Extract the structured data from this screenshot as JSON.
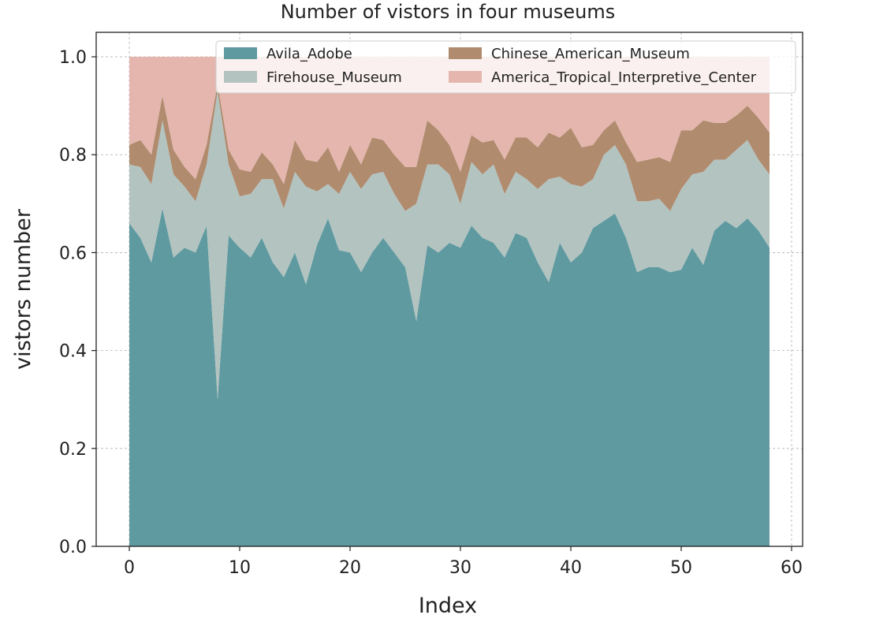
{
  "chart_data": {
    "type": "area",
    "stacked": true,
    "title": "Number of vistors in four museums",
    "xlabel": "Index",
    "ylabel": "vistors number",
    "xlim": [
      -3,
      61
    ],
    "ylim": [
      0,
      1.05
    ],
    "xticks": [
      0,
      10,
      20,
      30,
      40,
      50,
      60
    ],
    "yticks": [
      0.0,
      0.2,
      0.4,
      0.6,
      0.8,
      1.0
    ],
    "xtick_labels": [
      "0",
      "10",
      "20",
      "30",
      "40",
      "50",
      "60"
    ],
    "ytick_labels": [
      "0.0",
      "0.2",
      "0.4",
      "0.6",
      "0.8",
      "1.0"
    ],
    "grid": true,
    "legend_position": "top",
    "x": [
      0,
      1,
      2,
      3,
      4,
      5,
      6,
      7,
      8,
      9,
      10,
      11,
      12,
      13,
      14,
      15,
      16,
      17,
      18,
      19,
      20,
      21,
      22,
      23,
      24,
      25,
      26,
      27,
      28,
      29,
      30,
      31,
      32,
      33,
      34,
      35,
      36,
      37,
      38,
      39,
      40,
      41,
      42,
      43,
      44,
      45,
      46,
      47,
      48,
      49,
      50,
      51,
      52,
      53,
      54,
      55,
      56,
      57,
      58
    ],
    "series": [
      {
        "name": "Avila_Adobe",
        "color": "#5f9aa0",
        "values": [
          0.66,
          0.63,
          0.58,
          0.69,
          0.59,
          0.61,
          0.6,
          0.655,
          0.3,
          0.635,
          0.61,
          0.59,
          0.63,
          0.58,
          0.55,
          0.6,
          0.535,
          0.615,
          0.67,
          0.605,
          0.6,
          0.56,
          0.6,
          0.63,
          0.6,
          0.57,
          0.46,
          0.615,
          0.6,
          0.62,
          0.61,
          0.655,
          0.63,
          0.62,
          0.59,
          0.64,
          0.63,
          0.58,
          0.54,
          0.62,
          0.58,
          0.6,
          0.65,
          0.665,
          0.68,
          0.63,
          0.56,
          0.57,
          0.57,
          0.56,
          0.565,
          0.61,
          0.575,
          0.645,
          0.665,
          0.65,
          0.67,
          0.645,
          0.61
        ]
      },
      {
        "name": "Firehouse_Museum",
        "color": "#b3c3c0",
        "values": [
          0.12,
          0.145,
          0.16,
          0.18,
          0.17,
          0.125,
          0.105,
          0.125,
          0.63,
          0.145,
          0.105,
          0.13,
          0.12,
          0.17,
          0.14,
          0.165,
          0.2,
          0.11,
          0.07,
          0.115,
          0.165,
          0.17,
          0.16,
          0.135,
          0.12,
          0.115,
          0.24,
          0.165,
          0.18,
          0.14,
          0.09,
          0.13,
          0.13,
          0.16,
          0.13,
          0.125,
          0.12,
          0.15,
          0.21,
          0.135,
          0.16,
          0.135,
          0.1,
          0.135,
          0.14,
          0.15,
          0.145,
          0.135,
          0.14,
          0.125,
          0.165,
          0.15,
          0.19,
          0.145,
          0.125,
          0.16,
          0.16,
          0.145,
          0.15
        ]
      },
      {
        "name": "Chinese_American_Museum",
        "color": "#b08b6e",
        "values": [
          0.04,
          0.055,
          0.06,
          0.05,
          0.05,
          0.04,
          0.045,
          0.04,
          0.015,
          0.03,
          0.055,
          0.045,
          0.055,
          0.03,
          0.05,
          0.065,
          0.055,
          0.06,
          0.075,
          0.045,
          0.055,
          0.05,
          0.075,
          0.065,
          0.08,
          0.09,
          0.075,
          0.09,
          0.07,
          0.06,
          0.065,
          0.055,
          0.065,
          0.05,
          0.07,
          0.07,
          0.085,
          0.085,
          0.095,
          0.08,
          0.115,
          0.08,
          0.07,
          0.05,
          0.05,
          0.045,
          0.08,
          0.085,
          0.085,
          0.1,
          0.12,
          0.09,
          0.105,
          0.075,
          0.075,
          0.07,
          0.07,
          0.085,
          0.085
        ]
      },
      {
        "name": "America_Tropical_Interpretive_Center",
        "color": "#e4b6ae",
        "values": [
          0.18,
          0.17,
          0.2,
          0.08,
          0.19,
          0.225,
          0.25,
          0.18,
          0.055,
          0.19,
          0.23,
          0.235,
          0.195,
          0.22,
          0.26,
          0.17,
          0.21,
          0.215,
          0.185,
          0.235,
          0.18,
          0.22,
          0.165,
          0.17,
          0.2,
          0.225,
          0.225,
          0.13,
          0.15,
          0.18,
          0.235,
          0.16,
          0.175,
          0.17,
          0.21,
          0.165,
          0.165,
          0.185,
          0.155,
          0.165,
          0.145,
          0.185,
          0.18,
          0.15,
          0.13,
          0.175,
          0.215,
          0.21,
          0.205,
          0.215,
          0.15,
          0.15,
          0.13,
          0.135,
          0.135,
          0.12,
          0.1,
          0.125,
          0.155
        ]
      }
    ]
  }
}
